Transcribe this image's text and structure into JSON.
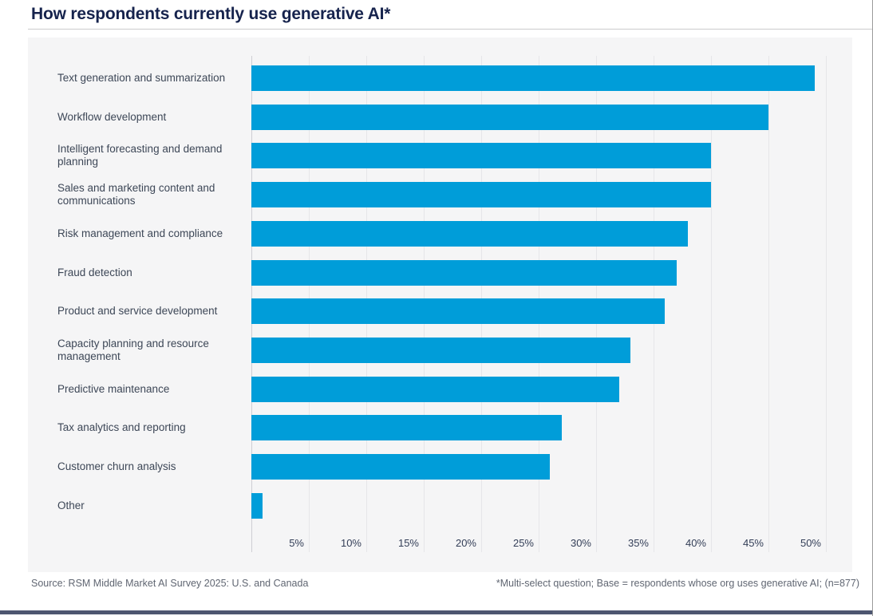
{
  "page": {
    "title": "How respondents currently use generative AI*",
    "footer": {
      "source": "Source: RSM Middle Market AI Survey 2025: U.S. and Canada",
      "note": "*Multi-select question; Base = respondents whose org uses generative AI; (n=877)"
    }
  },
  "colors": {
    "bar_blue": "#009dd9",
    "title_navy": "#16234d",
    "panel_background": "#f5f5f6",
    "gridline": "#e6e6e9",
    "label_text": "#3d4757",
    "footer_text": "#606672",
    "bottom_accent": "#4d5670"
  },
  "chart_data": {
    "type": "bar",
    "orientation": "horizontal",
    "title": "How respondents currently use generative AI*",
    "categories": [
      "Text generation and summarization",
      "Workflow development",
      "Intelligent forecasting and demand planning",
      "Sales and marketing content and communications",
      "Risk management and compliance",
      "Fraud detection",
      "Product and service development",
      "Capacity planning and resource management",
      "Predictive maintenance",
      "Tax analytics and reporting",
      "Customer churn analysis",
      "Other"
    ],
    "values": [
      49,
      45,
      40,
      40,
      38,
      37,
      36,
      33,
      32,
      27,
      26,
      1
    ],
    "unit": "%",
    "xlabel": "",
    "ylabel": "",
    "xlim": [
      0,
      50
    ],
    "xtick_step": 5,
    "xticks": [
      "5%",
      "10%",
      "15%",
      "20%",
      "25%",
      "30%",
      "35%",
      "40%",
      "45%",
      "50%"
    ],
    "grid": "vertical",
    "legend": "none"
  }
}
